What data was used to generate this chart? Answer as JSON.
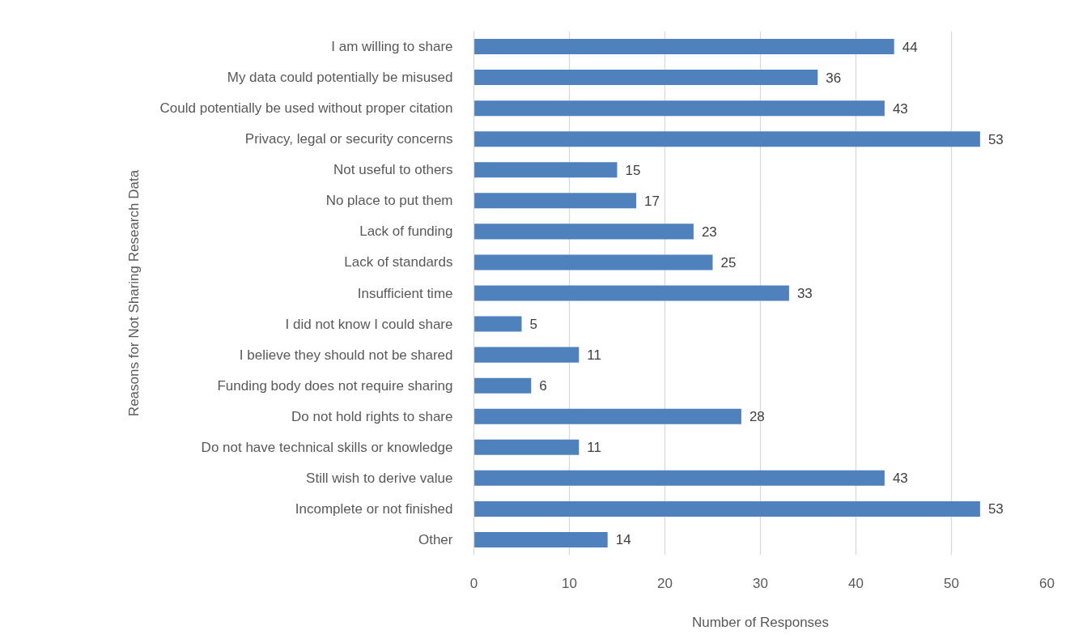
{
  "chart_data": {
    "type": "bar",
    "orientation": "horizontal",
    "xlabel": "Number of Responses",
    "ylabel": "Reasons for Not Sharing Research Data",
    "categories": [
      "I am willing to share",
      "My data could potentially be misused",
      "Could potentially be used without proper citation",
      "Privacy, legal or security concerns",
      "Not useful to others",
      "No place to put them",
      "Lack of funding",
      "Lack of standards",
      "Insufficient time",
      "I did not know I could share",
      "I believe they should not be shared",
      "Funding body does not require sharing",
      "Do not hold rights to share",
      "Do not have technical skills or knowledge",
      "Still wish to derive value",
      "Incomplete or not finished",
      "Other"
    ],
    "values": [
      44,
      36,
      43,
      53,
      15,
      17,
      23,
      25,
      33,
      5,
      11,
      6,
      28,
      11,
      43,
      53,
      14
    ],
    "color": "#4f81bd",
    "xlim": [
      0,
      60
    ],
    "xticks": [
      0,
      10,
      20,
      30,
      40,
      50,
      60
    ],
    "grid": "x",
    "data_labels": true
  }
}
